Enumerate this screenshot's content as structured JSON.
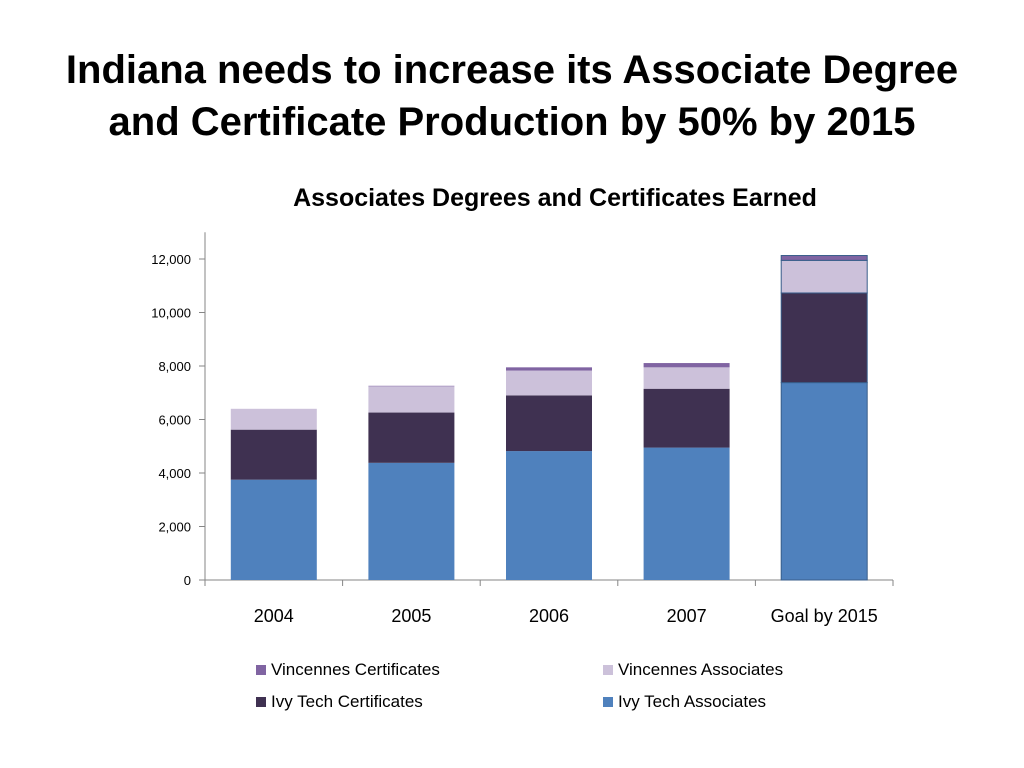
{
  "slide": {
    "title_line1": "Indiana needs to increase its Associate Degree",
    "title_line2": "and Certificate Production by 50% by 2015"
  },
  "chart_data": {
    "type": "bar",
    "stacked": true,
    "title": "Associates Degrees and Certificates Earned",
    "xlabel": "",
    "ylabel": "",
    "categories": [
      "2004",
      "2005",
      "2006",
      "2007",
      "Goal by 2015"
    ],
    "ylim": [
      0,
      13000
    ],
    "yticks": [
      0,
      2000,
      4000,
      6000,
      8000,
      10000,
      12000
    ],
    "ytick_labels": [
      "0",
      "2,000",
      "4,000",
      "6,000",
      "8,000",
      "10,000",
      "12,000"
    ],
    "grid": false,
    "legend_position": "bottom",
    "series": [
      {
        "name": "Ivy Tech Associates",
        "color": "#4f81bd",
        "values": [
          3750,
          4380,
          4820,
          4950,
          7380
        ]
      },
      {
        "name": "Ivy Tech Certificates",
        "color": "#3f3151",
        "values": [
          1870,
          1880,
          2080,
          2200,
          3350
        ]
      },
      {
        "name": "Vincennes Associates",
        "color": "#ccc1da",
        "values": [
          780,
          980,
          930,
          800,
          1220
        ]
      },
      {
        "name": "Vincennes Certificates",
        "color": "#8064a2",
        "values": [
          0,
          20,
          120,
          160,
          180
        ]
      }
    ],
    "legend_order": [
      "Vincennes Certificates",
      "Vincennes Associates",
      "Ivy Tech Certificates",
      "Ivy Tech Associates"
    ]
  }
}
